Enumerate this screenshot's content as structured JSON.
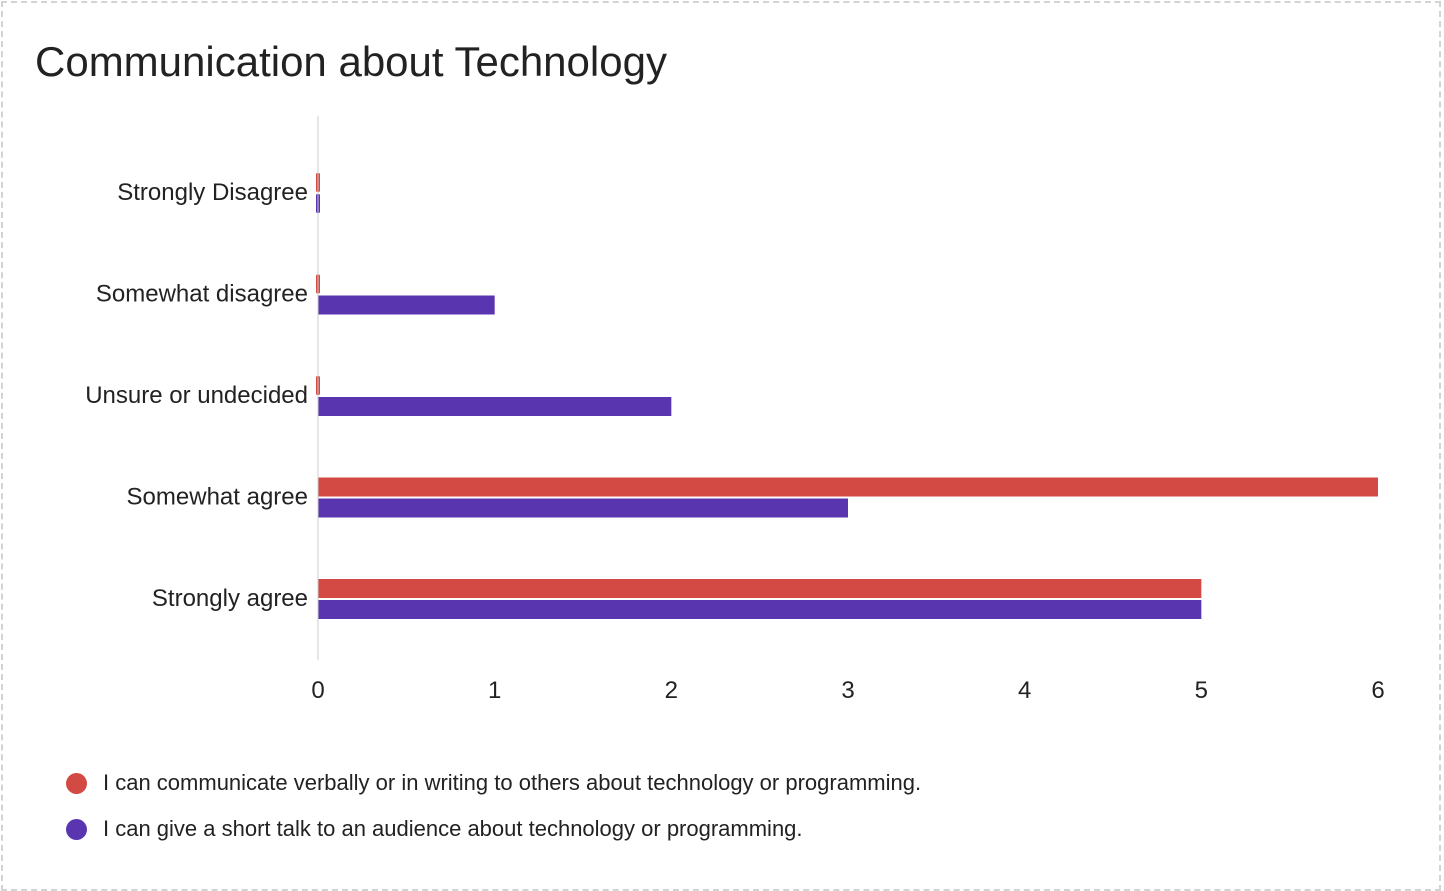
{
  "chart_data": {
    "type": "bar",
    "orientation": "horizontal",
    "title": "Communication about Technology",
    "categories": [
      "Strongly Disagree",
      "Somewhat disagree",
      "Unsure or undecided",
      "Somewhat agree",
      "Strongly agree"
    ],
    "series": [
      {
        "name": "I can communicate verbally or in writing to others about technology or programming.",
        "color": "#d24a43",
        "values": [
          0,
          0,
          0,
          6,
          5
        ]
      },
      {
        "name": "I can give a short talk to an audience about technology or programming.",
        "color": "#5a35b0",
        "values": [
          0,
          1,
          2,
          3,
          5
        ]
      }
    ],
    "x_ticks": [
      "0",
      "1",
      "2",
      "3",
      "4",
      "5",
      "6"
    ],
    "xlim": [
      0,
      6
    ],
    "xlabel": "",
    "ylabel": "",
    "grid": false,
    "legend_position": "bottom"
  }
}
